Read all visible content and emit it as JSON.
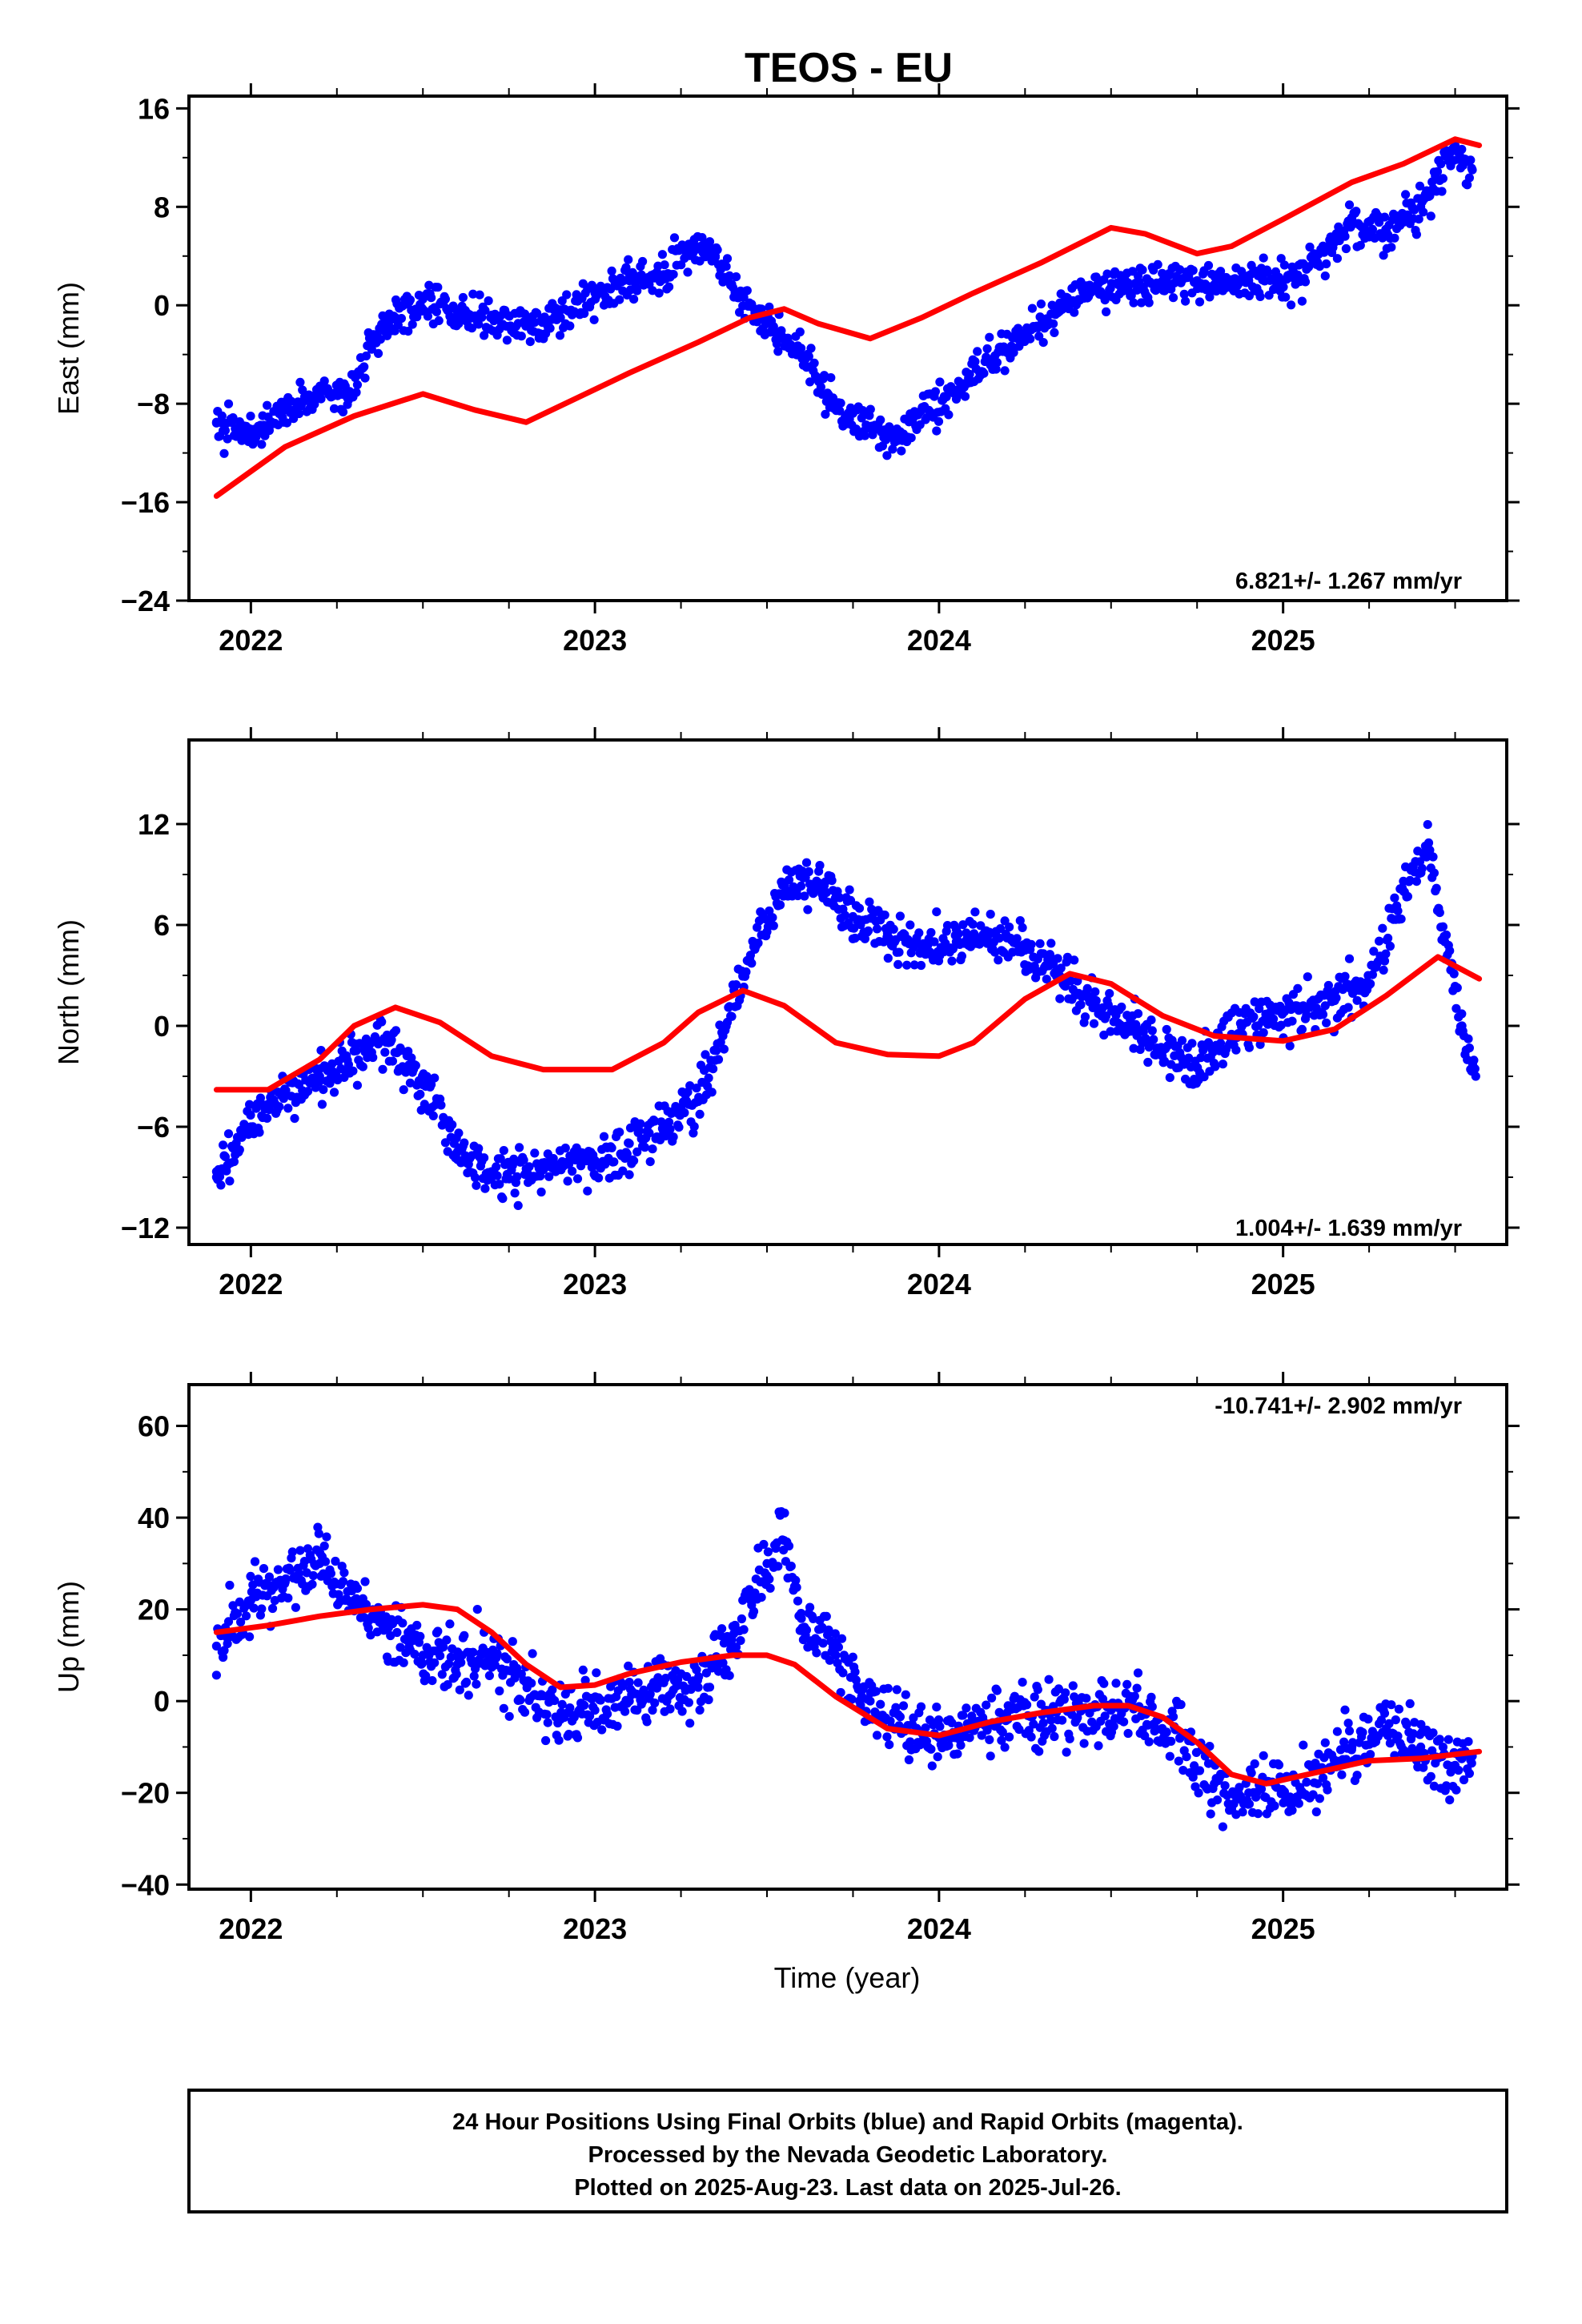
{
  "figure": {
    "title": "TEOS - EU",
    "xlabel": "Time (year)",
    "footer_lines": [
      "24 Hour Positions Using Final Orbits (blue) and Rapid Orbits (magenta).",
      "Processed by the Nevada Geodetic Laboratory.",
      "Plotted on 2025-Aug-23. Last data on 2025-Jul-26."
    ]
  },
  "colors": {
    "points": "#0000ff",
    "model": "#ff0000",
    "frame": "#000000"
  },
  "chart_data": [
    {
      "type": "scatter",
      "ylabel": "East (mm)",
      "rate_text": "6.821+/- 1.267 mm/yr",
      "xlim": [
        2021.82,
        2025.65
      ],
      "ylim": [
        -24,
        17
      ],
      "xticks": [
        2022,
        2023,
        2024,
        2025
      ],
      "yticks": [
        -24,
        -16,
        -8,
        0,
        8,
        16
      ],
      "ytick_labels": [
        "−24",
        "−16",
        "−8",
        "0",
        "8",
        "16"
      ],
      "grid": false,
      "observations": [
        [
          2021.9,
          -9.5
        ],
        [
          2022.0,
          -10.5
        ],
        [
          2022.1,
          -8.5
        ],
        [
          2022.2,
          -7.0
        ],
        [
          2022.28,
          -7.5
        ],
        [
          2022.35,
          -3.0
        ],
        [
          2022.42,
          -1.0
        ],
        [
          2022.5,
          0.5
        ],
        [
          2022.6,
          -0.5
        ],
        [
          2022.7,
          -1.0
        ],
        [
          2022.8,
          -1.5
        ],
        [
          2022.9,
          -1.0
        ],
        [
          2023.0,
          1.0
        ],
        [
          2023.1,
          2.0
        ],
        [
          2023.2,
          2.5
        ],
        [
          2023.28,
          5.0
        ],
        [
          2023.35,
          4.0
        ],
        [
          2023.42,
          1.0
        ],
        [
          2023.5,
          -1.5
        ],
        [
          2023.6,
          -4.0
        ],
        [
          2023.7,
          -8.5
        ],
        [
          2023.8,
          -10.0
        ],
        [
          2023.88,
          -11.0
        ],
        [
          2023.95,
          -8.5
        ],
        [
          2024.05,
          -7.0
        ],
        [
          2024.15,
          -4.5
        ],
        [
          2024.25,
          -2.5
        ],
        [
          2024.35,
          -0.5
        ],
        [
          2024.45,
          1.5
        ],
        [
          2024.55,
          1.5
        ],
        [
          2024.65,
          2.0
        ],
        [
          2024.75,
          2.0
        ],
        [
          2024.82,
          2.0
        ],
        [
          2024.9,
          2.0
        ],
        [
          2025.0,
          2.0
        ],
        [
          2025.1,
          3.5
        ],
        [
          2025.2,
          7.0
        ],
        [
          2025.3,
          6.0
        ],
        [
          2025.4,
          8.0
        ],
        [
          2025.48,
          12.0
        ],
        [
          2025.55,
          11.0
        ]
      ],
      "model": [
        [
          2021.9,
          -15.5
        ],
        [
          2022.1,
          -11.5
        ],
        [
          2022.3,
          -9.0
        ],
        [
          2022.5,
          -7.2
        ],
        [
          2022.65,
          -8.5
        ],
        [
          2022.8,
          -9.5
        ],
        [
          2022.95,
          -7.5
        ],
        [
          2023.1,
          -5.5
        ],
        [
          2023.3,
          -3.0
        ],
        [
          2023.45,
          -1.0
        ],
        [
          2023.55,
          -0.3
        ],
        [
          2023.65,
          -1.5
        ],
        [
          2023.8,
          -2.7
        ],
        [
          2023.95,
          -1.0
        ],
        [
          2024.1,
          1.0
        ],
        [
          2024.3,
          3.5
        ],
        [
          2024.5,
          6.3
        ],
        [
          2024.6,
          5.8
        ],
        [
          2024.75,
          4.2
        ],
        [
          2024.85,
          4.8
        ],
        [
          2025.0,
          7.0
        ],
        [
          2025.2,
          10.0
        ],
        [
          2025.35,
          11.5
        ],
        [
          2025.5,
          13.5
        ],
        [
          2025.57,
          13.0
        ]
      ]
    },
    {
      "type": "scatter",
      "ylabel": "North (mm)",
      "rate_text": "1.004+/- 1.639 mm/yr",
      "xlim": [
        2021.82,
        2025.65
      ],
      "ylim": [
        -13,
        17
      ],
      "xticks": [
        2022,
        2023,
        2024,
        2025
      ],
      "yticks": [
        -12,
        -6,
        0,
        6,
        12
      ],
      "ytick_labels": [
        "−12",
        "−6",
        "0",
        "6",
        "12"
      ],
      "grid": false,
      "observations": [
        [
          2021.9,
          -9.0
        ],
        [
          2022.0,
          -6.0
        ],
        [
          2022.1,
          -4.0
        ],
        [
          2022.2,
          -3.0
        ],
        [
          2022.3,
          -1.5
        ],
        [
          2022.4,
          -1.0
        ],
        [
          2022.5,
          -3.5
        ],
        [
          2022.6,
          -7.5
        ],
        [
          2022.7,
          -9.0
        ],
        [
          2022.8,
          -8.5
        ],
        [
          2022.9,
          -8.5
        ],
        [
          2023.0,
          -8.0
        ],
        [
          2023.1,
          -7.0
        ],
        [
          2023.2,
          -6.0
        ],
        [
          2023.3,
          -4.5
        ],
        [
          2023.38,
          0.0
        ],
        [
          2023.45,
          4.0
        ],
        [
          2023.55,
          8.5
        ],
        [
          2023.65,
          8.5
        ],
        [
          2023.75,
          6.5
        ],
        [
          2023.85,
          5.5
        ],
        [
          2023.95,
          4.5
        ],
        [
          2024.05,
          5.0
        ],
        [
          2024.15,
          5.5
        ],
        [
          2024.25,
          4.5
        ],
        [
          2024.35,
          3.0
        ],
        [
          2024.45,
          1.5
        ],
        [
          2024.55,
          0.0
        ],
        [
          2024.65,
          -1.5
        ],
        [
          2024.75,
          -2.5
        ],
        [
          2024.85,
          -0.5
        ],
        [
          2024.95,
          0.5
        ],
        [
          2025.05,
          1.0
        ],
        [
          2025.15,
          1.5
        ],
        [
          2025.25,
          2.5
        ],
        [
          2025.35,
          8.0
        ],
        [
          2025.42,
          10.5
        ],
        [
          2025.47,
          5.0
        ],
        [
          2025.52,
          0.0
        ],
        [
          2025.56,
          -3.0
        ]
      ],
      "model": [
        [
          2021.9,
          -3.8
        ],
        [
          2022.05,
          -3.8
        ],
        [
          2022.2,
          -2.0
        ],
        [
          2022.3,
          0.0
        ],
        [
          2022.42,
          1.1
        ],
        [
          2022.55,
          0.2
        ],
        [
          2022.7,
          -1.8
        ],
        [
          2022.85,
          -2.6
        ],
        [
          2023.05,
          -2.6
        ],
        [
          2023.2,
          -1.0
        ],
        [
          2023.3,
          0.8
        ],
        [
          2023.43,
          2.1
        ],
        [
          2023.55,
          1.2
        ],
        [
          2023.7,
          -1.0
        ],
        [
          2023.85,
          -1.7
        ],
        [
          2024.0,
          -1.8
        ],
        [
          2024.1,
          -1.0
        ],
        [
          2024.25,
          1.6
        ],
        [
          2024.38,
          3.1
        ],
        [
          2024.5,
          2.5
        ],
        [
          2024.65,
          0.6
        ],
        [
          2024.8,
          -0.6
        ],
        [
          2025.0,
          -0.9
        ],
        [
          2025.15,
          -0.2
        ],
        [
          2025.3,
          1.8
        ],
        [
          2025.45,
          4.1
        ],
        [
          2025.57,
          2.8
        ]
      ]
    },
    {
      "type": "scatter",
      "ylabel": "Up (mm)",
      "rate_text": "-10.741+/- 2.902 mm/yr",
      "xlim": [
        2021.82,
        2025.65
      ],
      "ylim": [
        -41,
        69
      ],
      "xticks": [
        2022,
        2023,
        2024,
        2025
      ],
      "yticks": [
        -40,
        -20,
        0,
        20,
        40,
        60
      ],
      "ytick_labels": [
        "−40",
        "−20",
        "0",
        "20",
        "40",
        "60"
      ],
      "grid": false,
      "observations": [
        [
          2021.9,
          12.0
        ],
        [
          2022.0,
          22.0
        ],
        [
          2022.1,
          26.0
        ],
        [
          2022.2,
          30.0
        ],
        [
          2022.3,
          22.0
        ],
        [
          2022.4,
          16.0
        ],
        [
          2022.5,
          10.0
        ],
        [
          2022.6,
          8.0
        ],
        [
          2022.7,
          10.0
        ],
        [
          2022.8,
          4.0
        ],
        [
          2022.9,
          -4.0
        ],
        [
          2023.0,
          -2.0
        ],
        [
          2023.1,
          0.0
        ],
        [
          2023.2,
          4.0
        ],
        [
          2023.3,
          3.0
        ],
        [
          2023.4,
          12.0
        ],
        [
          2023.5,
          30.0
        ],
        [
          2023.55,
          35.0
        ],
        [
          2023.6,
          18.0
        ],
        [
          2023.7,
          10.0
        ],
        [
          2023.8,
          0.0
        ],
        [
          2023.9,
          -6.0
        ],
        [
          2024.0,
          -8.0
        ],
        [
          2024.1,
          -6.0
        ],
        [
          2024.2,
          -4.0
        ],
        [
          2024.3,
          -3.0
        ],
        [
          2024.4,
          -4.0
        ],
        [
          2024.5,
          -2.0
        ],
        [
          2024.6,
          -2.0
        ],
        [
          2024.7,
          -8.0
        ],
        [
          2024.8,
          -18.0
        ],
        [
          2024.9,
          -20.0
        ],
        [
          2025.0,
          -20.0
        ],
        [
          2025.1,
          -18.0
        ],
        [
          2025.2,
          -10.0
        ],
        [
          2025.3,
          -6.0
        ],
        [
          2025.4,
          -10.0
        ],
        [
          2025.5,
          -14.0
        ],
        [
          2025.55,
          -12.0
        ]
      ],
      "model": [
        [
          2021.9,
          15.0
        ],
        [
          2022.05,
          16.5
        ],
        [
          2022.2,
          18.5
        ],
        [
          2022.35,
          20.0
        ],
        [
          2022.5,
          21.0
        ],
        [
          2022.6,
          20.0
        ],
        [
          2022.7,
          15.0
        ],
        [
          2022.8,
          8.0
        ],
        [
          2022.9,
          3.0
        ],
        [
          2023.0,
          3.5
        ],
        [
          2023.1,
          6.0
        ],
        [
          2023.25,
          8.5
        ],
        [
          2023.4,
          10.0
        ],
        [
          2023.5,
          10.0
        ],
        [
          2023.58,
          8.0
        ],
        [
          2023.7,
          1.0
        ],
        [
          2023.85,
          -6.0
        ],
        [
          2024.0,
          -7.5
        ],
        [
          2024.15,
          -4.5
        ],
        [
          2024.3,
          -2.5
        ],
        [
          2024.45,
          -1.0
        ],
        [
          2024.55,
          -1.0
        ],
        [
          2024.65,
          -3.5
        ],
        [
          2024.75,
          -9.0
        ],
        [
          2024.85,
          -16.0
        ],
        [
          2024.95,
          -18.0
        ],
        [
          2025.1,
          -15.5
        ],
        [
          2025.25,
          -13.0
        ],
        [
          2025.4,
          -12.5
        ],
        [
          2025.57,
          -11.0
        ]
      ]
    }
  ]
}
